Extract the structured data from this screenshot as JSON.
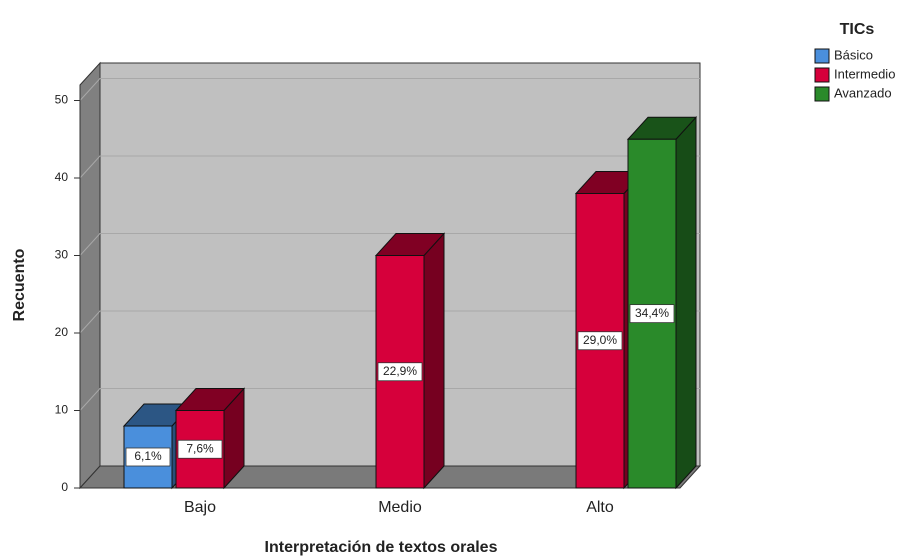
{
  "chart_data": {
    "type": "bar3d",
    "x_label": "Interpretación de textos orales",
    "y_label": "Recuento",
    "legend_title": "TICs",
    "legend_position": "top-right",
    "categories": [
      "Bajo",
      "Medio",
      "Alto"
    ],
    "series": [
      {
        "name": "Básico",
        "color": "#4a8fdc",
        "values": [
          8,
          null,
          null
        ],
        "value_labels": [
          "6,1%",
          null,
          null
        ]
      },
      {
        "name": "Intermedio",
        "color": "#d6003b",
        "values": [
          10,
          30,
          38
        ],
        "value_labels": [
          "7,6%",
          "22,9%",
          "29,0%"
        ]
      },
      {
        "name": "Avanzado",
        "color": "#2a8a2a",
        "values": [
          null,
          null,
          45
        ],
        "value_labels": [
          null,
          null,
          "34,4%"
        ]
      }
    ],
    "ylim": [
      0,
      52
    ],
    "yticks": [
      0,
      10,
      20,
      30,
      40,
      50
    ],
    "grid": true
  }
}
